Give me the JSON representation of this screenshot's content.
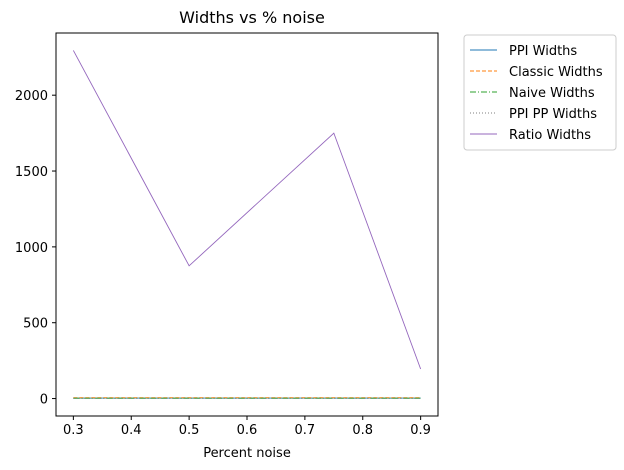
{
  "chart_data": {
    "type": "line",
    "title": "Widths vs % noise",
    "xlabel": "Percent noise",
    "ylabel": "",
    "x": [
      0.3,
      0.5,
      0.75,
      0.9
    ],
    "xlim": [
      0.27,
      0.93
    ],
    "ylim": [
      -115,
      2410
    ],
    "xticks": [
      0.3,
      0.4,
      0.5,
      0.6,
      0.7,
      0.8,
      0.9
    ],
    "xtick_labels": [
      "0.3",
      "0.4",
      "0.5",
      "0.6",
      "0.7",
      "0.8",
      "0.9"
    ],
    "yticks": [
      0,
      500,
      1000,
      1500,
      2000
    ],
    "ytick_labels": [
      "0",
      "500",
      "1000",
      "1500",
      "2000"
    ],
    "grid": false,
    "legend_position": "outside-top-right",
    "series": [
      {
        "name": "PPI Widths",
        "values": [
          3,
          3,
          3,
          3
        ],
        "color": "#1f77b4",
        "dash": ""
      },
      {
        "name": "Classic Widths",
        "values": [
          6,
          6,
          6,
          6
        ],
        "color": "#ff7f0e",
        "dash": "4,2"
      },
      {
        "name": "Naive Widths",
        "values": [
          2,
          2,
          2,
          2
        ],
        "color": "#2ca02c",
        "dash": "6,2,1,2"
      },
      {
        "name": "PPI PP Widths",
        "values": [
          1,
          1,
          1,
          1
        ],
        "color": "#7f7f7f",
        "dash": "1,2"
      },
      {
        "name": "Ratio Widths",
        "values": [
          2295,
          875,
          1750,
          195
        ],
        "color": "#9467bd",
        "dash": ""
      }
    ]
  }
}
